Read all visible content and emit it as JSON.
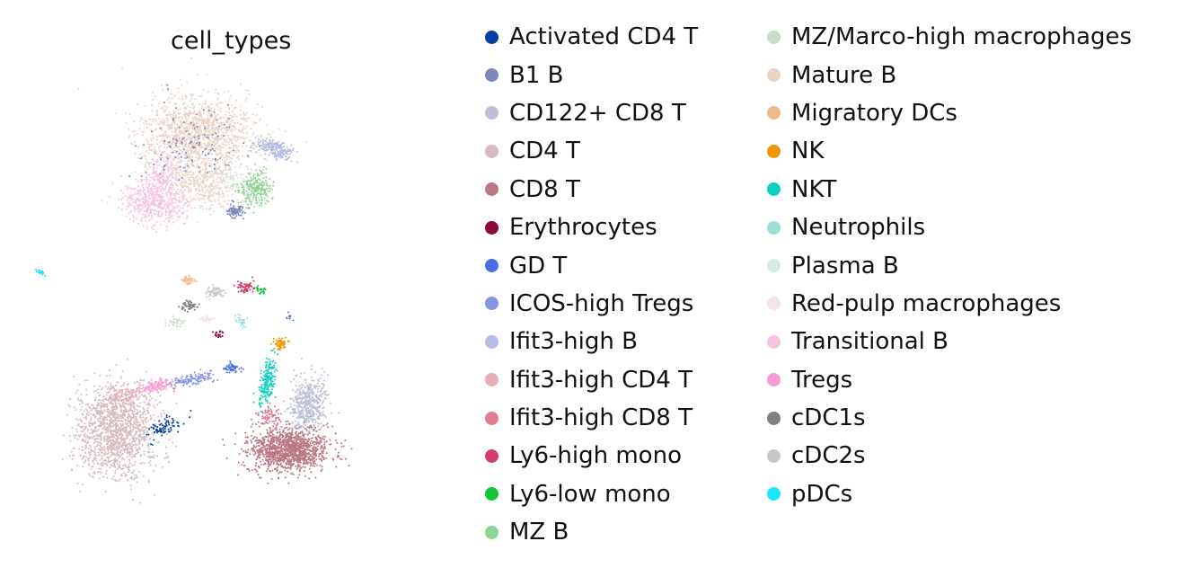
{
  "chart_data": {
    "type": "scatter",
    "title": "cell_types",
    "xlabel": "",
    "ylabel": "",
    "grid": false,
    "axes_visible": false,
    "legend_position": "right",
    "legend_columns": 2,
    "series": [
      {
        "name": "Activated CD4 T",
        "color": "#023fa5"
      },
      {
        "name": "B1 B",
        "color": "#7d87b9"
      },
      {
        "name": "CD122+ CD8 T",
        "color": "#bec1d4"
      },
      {
        "name": "CD4 T",
        "color": "#d6bcc0"
      },
      {
        "name": "CD8 T",
        "color": "#bb7784"
      },
      {
        "name": "Erythrocytes",
        "color": "#8e063b"
      },
      {
        "name": "GD T",
        "color": "#4a6fe3"
      },
      {
        "name": "ICOS-high Tregs",
        "color": "#8595e1"
      },
      {
        "name": "Ifit3-high B",
        "color": "#b5bbe3"
      },
      {
        "name": "Ifit3-high CD4 T",
        "color": "#e6afb9"
      },
      {
        "name": "Ifit3-high CD8 T",
        "color": "#e07b91"
      },
      {
        "name": "Ly6-high mono",
        "color": "#d33f6a"
      },
      {
        "name": "Ly6-low mono",
        "color": "#11c638"
      },
      {
        "name": "MZ B",
        "color": "#8dd593"
      },
      {
        "name": "MZ/Marco-high macrophages",
        "color": "#c6dec7"
      },
      {
        "name": "Mature B",
        "color": "#ead3c6"
      },
      {
        "name": "Migratory DCs",
        "color": "#f0b98d"
      },
      {
        "name": "NK",
        "color": "#ef9708"
      },
      {
        "name": "NKT",
        "color": "#0fcfc0"
      },
      {
        "name": "Neutrophils",
        "color": "#9cded6"
      },
      {
        "name": "Plasma B",
        "color": "#d5eae7"
      },
      {
        "name": "Red-pulp macrophages",
        "color": "#f3e1eb"
      },
      {
        "name": "Transitional B",
        "color": "#f6c4e1"
      },
      {
        "name": "Tregs",
        "color": "#f79cd4"
      },
      {
        "name": "cDC1s",
        "color": "#7f7f7f"
      },
      {
        "name": "cDC2s",
        "color": "#c7c7c7"
      },
      {
        "name": "pDCs",
        "color": "#1ce6ff"
      }
    ]
  }
}
